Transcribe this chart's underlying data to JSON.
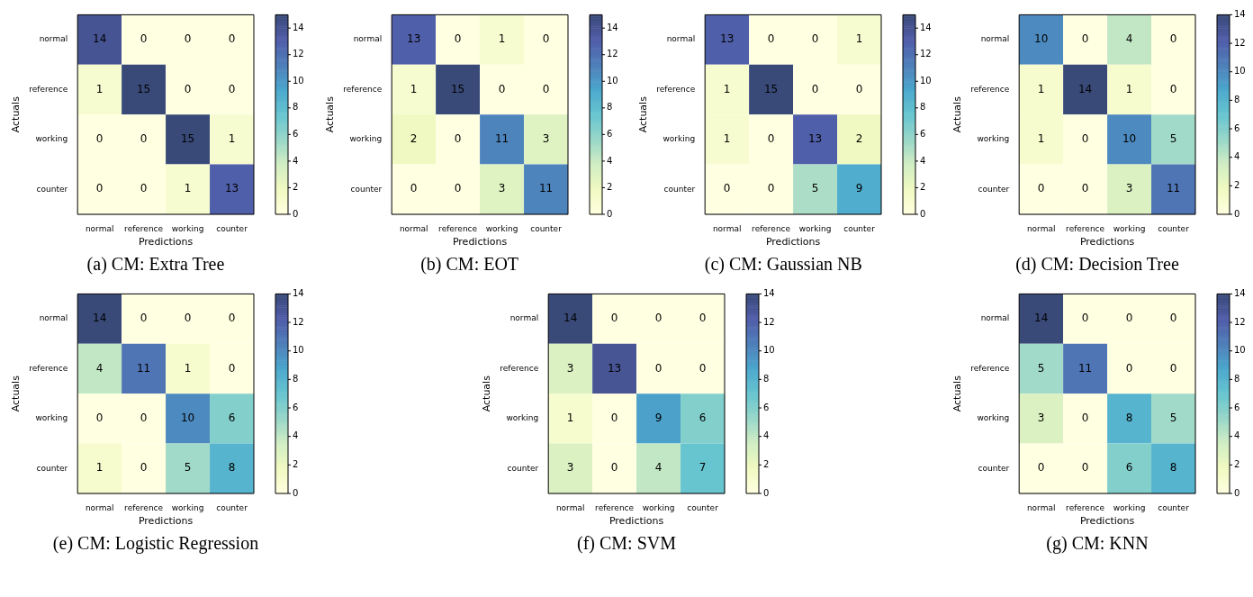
{
  "chart_data": [
    {
      "type": "heatmap",
      "title": "(a) CM: Extra Tree",
      "xlabel": "Predictions",
      "ylabel": "Actuals",
      "categories": [
        "normal",
        "reference",
        "working",
        "counter"
      ],
      "y_categories": [
        "normal",
        "reference",
        "working",
        "counter"
      ],
      "cells": [
        [
          14,
          0,
          0,
          0
        ],
        [
          1,
          15,
          0,
          0
        ],
        [
          0,
          0,
          15,
          1
        ],
        [
          0,
          0,
          1,
          13
        ]
      ],
      "clim": [
        0,
        15
      ],
      "cticks": [
        0,
        2,
        4,
        6,
        8,
        10,
        12,
        14
      ],
      "data_labels": true
    },
    {
      "type": "heatmap",
      "title": "(b) CM: EOT",
      "xlabel": "Predictions",
      "ylabel": "Actuals",
      "categories": [
        "normal",
        "reference",
        "working",
        "counter"
      ],
      "y_categories": [
        "normal",
        "reference",
        "working",
        "counter"
      ],
      "cells": [
        [
          13,
          0,
          1,
          0
        ],
        [
          1,
          15,
          0,
          0
        ],
        [
          2,
          0,
          11,
          3
        ],
        [
          0,
          0,
          3,
          11
        ]
      ],
      "clim": [
        0,
        15
      ],
      "cticks": [
        0,
        2,
        4,
        6,
        8,
        10,
        12,
        14
      ],
      "data_labels": true
    },
    {
      "type": "heatmap",
      "title": "(c) CM: Gaussian NB",
      "xlabel": "Predictions",
      "ylabel": "Actuals",
      "categories": [
        "normal",
        "reference",
        "working",
        "counter"
      ],
      "y_categories": [
        "normal",
        "reference",
        "working",
        "counter"
      ],
      "cells": [
        [
          13,
          0,
          0,
          1
        ],
        [
          1,
          15,
          0,
          0
        ],
        [
          1,
          0,
          13,
          2
        ],
        [
          0,
          0,
          5,
          9
        ]
      ],
      "clim": [
        0,
        15
      ],
      "cticks": [
        0,
        2,
        4,
        6,
        8,
        10,
        12,
        14
      ],
      "data_labels": true
    },
    {
      "type": "heatmap",
      "title": "(d) CM: Decision Tree",
      "xlabel": "Predictions",
      "ylabel": "Actuals",
      "categories": [
        "normal",
        "reference",
        "working",
        "counter"
      ],
      "y_categories": [
        "normal",
        "reference",
        "working",
        "counter"
      ],
      "cells": [
        [
          10,
          0,
          4,
          0
        ],
        [
          1,
          14,
          1,
          0
        ],
        [
          1,
          0,
          10,
          5
        ],
        [
          0,
          0,
          3,
          11
        ]
      ],
      "clim": [
        0,
        14
      ],
      "cticks": [
        0,
        2,
        4,
        6,
        8,
        10,
        12,
        14
      ],
      "data_labels": true
    },
    {
      "type": "heatmap",
      "title": "(e) CM: Logistic Regression",
      "xlabel": "Predictions",
      "ylabel": "Actuals",
      "categories": [
        "normal",
        "reference",
        "working",
        "counter"
      ],
      "y_categories": [
        "normal",
        "reference",
        "working",
        "counter"
      ],
      "cells": [
        [
          14,
          0,
          0,
          0
        ],
        [
          4,
          11,
          1,
          0
        ],
        [
          0,
          0,
          10,
          6
        ],
        [
          1,
          0,
          5,
          8
        ]
      ],
      "clim": [
        0,
        14
      ],
      "cticks": [
        0,
        2,
        4,
        6,
        8,
        10,
        12,
        14
      ],
      "data_labels": true
    },
    {
      "type": "heatmap",
      "title": "(f) CM: SVM",
      "xlabel": "Predictions",
      "ylabel": "Actuals",
      "categories": [
        "normal",
        "reference",
        "working",
        "counter"
      ],
      "y_categories": [
        "normal",
        "reference",
        "working",
        "counter"
      ],
      "cells": [
        [
          14,
          0,
          0,
          0
        ],
        [
          3,
          13,
          0,
          0
        ],
        [
          1,
          0,
          9,
          6
        ],
        [
          3,
          0,
          4,
          7
        ]
      ],
      "clim": [
        0,
        14
      ],
      "cticks": [
        0,
        2,
        4,
        6,
        8,
        10,
        12,
        14
      ],
      "data_labels": true
    },
    {
      "type": "heatmap",
      "title": "(g) CM: KNN",
      "xlabel": "Predictions",
      "ylabel": "Actuals",
      "categories": [
        "normal",
        "reference",
        "working",
        "counter"
      ],
      "y_categories": [
        "normal",
        "reference",
        "working",
        "counter"
      ],
      "cells": [
        [
          14,
          0,
          0,
          0
        ],
        [
          5,
          11,
          0,
          0
        ],
        [
          3,
          0,
          8,
          5
        ],
        [
          0,
          0,
          6,
          8
        ]
      ],
      "clim": [
        0,
        14
      ],
      "cticks": [
        0,
        2,
        4,
        6,
        8,
        10,
        12,
        14
      ],
      "data_labels": true
    }
  ]
}
